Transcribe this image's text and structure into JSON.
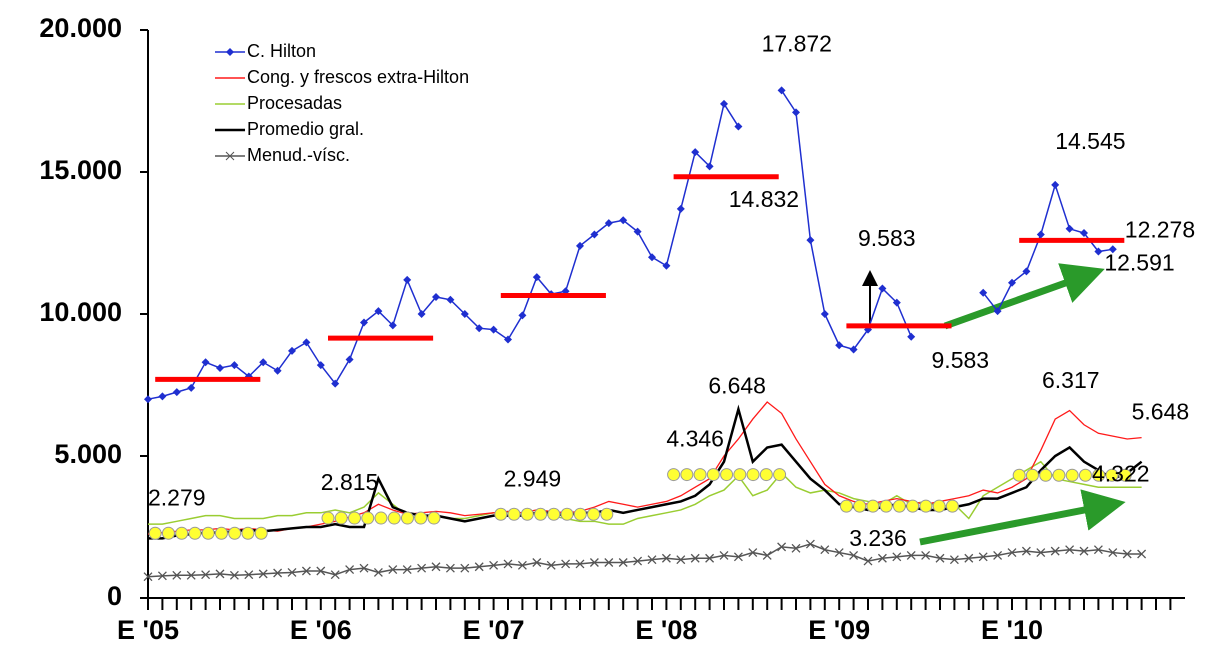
{
  "chart_data": {
    "type": "line",
    "categories": [
      "E '05",
      null,
      null,
      null,
      null,
      null,
      null,
      null,
      null,
      null,
      null,
      null,
      "E '06",
      null,
      null,
      null,
      null,
      null,
      null,
      null,
      null,
      null,
      null,
      null,
      "E '07",
      null,
      null,
      null,
      null,
      null,
      null,
      null,
      null,
      null,
      null,
      null,
      "E '08",
      null,
      null,
      null,
      null,
      null,
      null,
      null,
      null,
      null,
      null,
      null,
      "E '09",
      null,
      null,
      null,
      null,
      null,
      null,
      null,
      null,
      null,
      null,
      null,
      "E '10",
      null,
      null,
      null,
      null,
      null,
      null,
      null,
      null,
      null,
      null,
      null
    ],
    "ylim": [
      0,
      20000
    ],
    "yticks": [
      0,
      {
        "value": 5000,
        "label": "5.000"
      },
      {
        "value": 10000,
        "label": "10.000"
      },
      {
        "value": 15000,
        "label": "15.000"
      },
      {
        "value": 20000,
        "label": "20.000"
      }
    ],
    "legend": "upper left",
    "series": [
      {
        "name": "C. Hilton",
        "color": "#1f2fd0",
        "marker": "diamond",
        "values": [
          7000,
          7100,
          7250,
          7400,
          8300,
          8100,
          8200,
          7800,
          8300,
          8000,
          8700,
          9000,
          8200,
          7550,
          8400,
          9700,
          10100,
          9600,
          11200,
          10000,
          10600,
          10500,
          10000,
          9500,
          9450,
          9100,
          9950,
          11300,
          10700,
          10800,
          12400,
          12800,
          13200,
          13300,
          12900,
          12000,
          11700,
          13700,
          15700,
          15200,
          17400,
          16600,
          null,
          null,
          17872,
          17100,
          12600,
          10000,
          8900,
          8750,
          9450,
          10900,
          10400,
          9200,
          null,
          null,
          null,
          null,
          10750,
          10100,
          11100,
          11500,
          12800,
          14545,
          13000,
          12850,
          12200,
          12278,
          null,
          null,
          null,
          null
        ],
        "value_labels": [
          null,
          null,
          null,
          null,
          null,
          null,
          null,
          null,
          null,
          null,
          null,
          null,
          null,
          null,
          null,
          null,
          null,
          null,
          null,
          null,
          null,
          null,
          null,
          null,
          null,
          null,
          null,
          null,
          null,
          null,
          null,
          null,
          null,
          null,
          null,
          null,
          null,
          null,
          null,
          null,
          null,
          null,
          null,
          null,
          "17.872",
          null,
          null,
          null,
          null,
          null,
          null,
          null,
          null,
          null,
          null,
          null,
          null,
          null,
          null,
          null,
          null,
          null,
          null,
          "14.545",
          null,
          null,
          null,
          "12.278",
          null,
          null,
          null,
          null
        ]
      },
      {
        "name": "Cong. y frescos extra-Hilton",
        "color": "#ff1a1a",
        "marker": "none",
        "values": [
          2250,
          2300,
          2350,
          2400,
          2400,
          2450,
          2400,
          2450,
          2400,
          2350,
          2450,
          2500,
          2600,
          2700,
          2850,
          3000,
          3300,
          3100,
          2950,
          3000,
          3050,
          3000,
          2900,
          2950,
          3000,
          3050,
          3000,
          3100,
          3050,
          3000,
          3050,
          3200,
          3400,
          3300,
          3200,
          3300,
          3400,
          3600,
          3900,
          4200,
          5000,
          5600,
          6300,
          6900,
          6500,
          5600,
          4800,
          4000,
          3600,
          3400,
          3300,
          3400,
          3500,
          3400,
          3300,
          3400,
          3500,
          3600,
          3800,
          3700,
          3900,
          4200,
          5200,
          6300,
          6600,
          6100,
          5800,
          5700,
          5600,
          5648,
          null,
          null
        ],
        "value_labels": [
          null,
          null,
          null,
          null,
          null,
          null,
          null,
          null,
          null,
          null,
          null,
          null,
          null,
          null,
          null,
          null,
          null,
          null,
          null,
          null,
          null,
          null,
          null,
          null,
          null,
          null,
          null,
          null,
          null,
          null,
          null,
          null,
          null,
          null,
          null,
          null,
          null,
          null,
          null,
          null,
          null,
          null,
          null,
          null,
          null,
          null,
          null,
          null,
          null,
          null,
          null,
          null,
          null,
          null,
          null,
          null,
          null,
          null,
          null,
          null,
          null,
          null,
          null,
          null,
          null,
          null,
          null,
          null,
          null,
          "5.648",
          null,
          null
        ]
      },
      {
        "name": "Procesadas",
        "color": "#9acd32",
        "marker": "none",
        "values": [
          2600,
          2600,
          2700,
          2800,
          2900,
          2900,
          2800,
          2800,
          2800,
          2900,
          2900,
          3000,
          3000,
          3100,
          3000,
          3200,
          3700,
          3300,
          2900,
          2800,
          2900,
          2800,
          2800,
          2900,
          3000,
          3000,
          3000,
          3000,
          2900,
          2800,
          2700,
          2700,
          2600,
          2600,
          2800,
          2900,
          3000,
          3100,
          3300,
          3600,
          3800,
          4300,
          3600,
          3800,
          4400,
          3900,
          3700,
          3800,
          3700,
          3500,
          3400,
          3300,
          3600,
          3300,
          3400,
          3200,
          3300,
          2800,
          3600,
          3900,
          4200,
          4500,
          4800,
          4200,
          4100,
          4000,
          3900,
          3900,
          3900,
          3900,
          null,
          null
        ]
      },
      {
        "name": "Promedio gral.",
        "color": "#000000",
        "marker": "none",
        "values": [
          2100,
          2100,
          2200,
          2250,
          2300,
          2300,
          2350,
          2400,
          2350,
          2400,
          2450,
          2500,
          2500,
          2600,
          2500,
          2500,
          4200,
          3200,
          3000,
          2900,
          2900,
          2800,
          2700,
          2800,
          2900,
          2900,
          2900,
          3000,
          3000,
          2900,
          3000,
          3000,
          3100,
          3000,
          3100,
          3200,
          3300,
          3400,
          3600,
          4000,
          4800,
          6648,
          4800,
          5300,
          5400,
          4800,
          4200,
          3800,
          3300,
          3200,
          3100,
          3200,
          3300,
          3200,
          3100,
          3100,
          3200,
          3300,
          3500,
          3500,
          3700,
          3900,
          4500,
          5000,
          5300,
          4800,
          4500,
          4200,
          4400,
          4800,
          null,
          null
        ],
        "value_labels": [
          null,
          null,
          null,
          null,
          null,
          null,
          null,
          null,
          null,
          null,
          null,
          null,
          null,
          null,
          null,
          null,
          null,
          null,
          null,
          null,
          null,
          null,
          null,
          null,
          null,
          null,
          null,
          null,
          null,
          null,
          null,
          null,
          null,
          null,
          null,
          null,
          null,
          null,
          null,
          null,
          null,
          "6.648",
          null,
          null,
          null,
          null,
          null,
          null,
          null,
          null,
          null,
          null,
          null,
          null,
          null,
          null,
          null,
          null,
          null,
          null,
          null,
          null,
          null,
          null,
          null,
          null,
          null,
          null,
          null,
          null,
          null,
          null
        ]
      },
      {
        "name": "Menud.-vísc.",
        "color": "#555555",
        "marker": "x",
        "values": [
          750,
          780,
          800,
          800,
          820,
          850,
          800,
          820,
          850,
          880,
          900,
          950,
          950,
          820,
          1000,
          1050,
          900,
          1000,
          1000,
          1050,
          1100,
          1050,
          1050,
          1100,
          1150,
          1200,
          1150,
          1250,
          1150,
          1200,
          1200,
          1250,
          1250,
          1250,
          1300,
          1350,
          1400,
          1350,
          1400,
          1400,
          1500,
          1450,
          1600,
          1500,
          1800,
          1750,
          1900,
          1700,
          1600,
          1500,
          1300,
          1400,
          1450,
          1500,
          1500,
          1400,
          1350,
          1400,
          1450,
          1500,
          1600,
          1650,
          1600,
          1650,
          1700,
          1650,
          1700,
          1600,
          1550,
          1550,
          null,
          null
        ]
      }
    ],
    "hilton_averages": {
      "color": "#ff0000",
      "values": [
        7700,
        9150,
        10650,
        14832,
        9583,
        12591
      ],
      "value_labels": [
        null,
        null,
        null,
        "14.832",
        "9.583",
        "12.591"
      ]
    },
    "general_averages": {
      "color": "#ffff33",
      "values": [
        2279,
        2815,
        2949,
        4346,
        3236,
        4322
      ],
      "value_labels": [
        "2.279",
        "2.815",
        "2.949",
        "4.346",
        "3.236",
        "4.322"
      ]
    },
    "annotations": [
      "9.583",
      "6.317"
    ]
  }
}
